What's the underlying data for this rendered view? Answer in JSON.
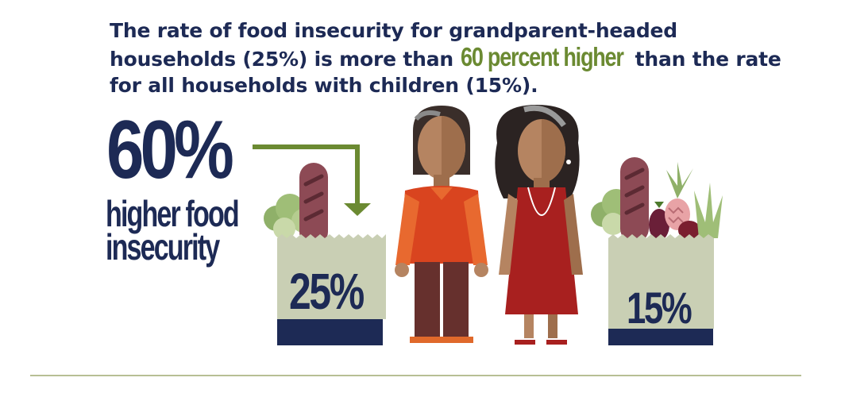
{
  "headline": {
    "part1": "The rate of food insecurity for grandparent-headed households (25%) is more than ",
    "accent": "60 percent higher",
    "part2": " than the rate for all households with children (15%)."
  },
  "stat": {
    "value": "60%",
    "caption_line1": "higher food",
    "caption_line2": "insecurity"
  },
  "bags": {
    "left_label": "25%",
    "right_label": "15%"
  },
  "colors": {
    "navy": "#1d2a55",
    "green": "#6b8a32",
    "bag": "#c9cfb4",
    "orange": "#d9441f"
  }
}
